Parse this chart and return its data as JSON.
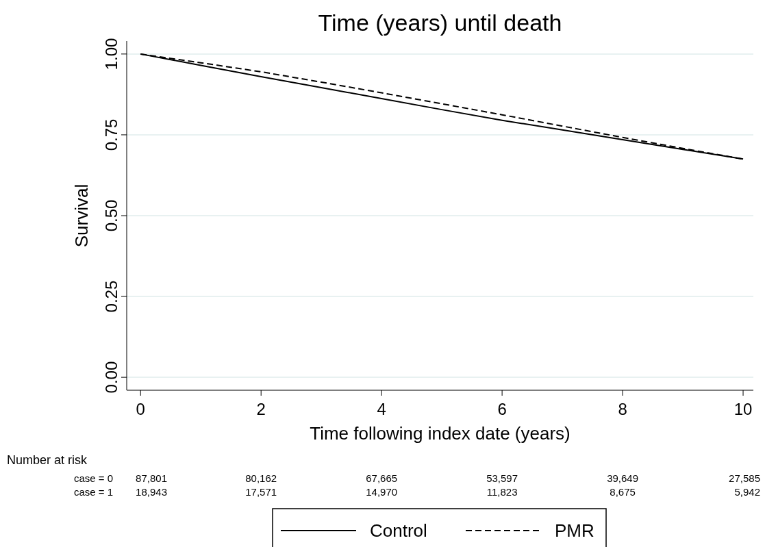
{
  "chart_data": {
    "type": "line",
    "title": "Time (years) until death",
    "xlabel": "Time following index date (years)",
    "ylabel": "Survival",
    "x": [
      0,
      1,
      2,
      3,
      4,
      5,
      6,
      7,
      8,
      9,
      10
    ],
    "series": [
      {
        "name": "Control",
        "color": "#000000",
        "line_style": "solid",
        "values": [
          1,
          0.965,
          0.93,
          0.896,
          0.862,
          0.828,
          0.795,
          0.765,
          0.735,
          0.705,
          0.675
        ]
      },
      {
        "name": "PMR",
        "color": "#000000",
        "line_style": "dashed",
        "values": [
          1,
          0.973,
          0.945,
          0.913,
          0.88,
          0.846,
          0.812,
          0.777,
          0.742,
          0.708,
          0.675
        ]
      }
    ],
    "xlim": [
      -0.23,
      10.17
    ],
    "xticks": [
      0,
      2,
      4,
      6,
      8,
      10
    ],
    "ylim": [
      -0.04,
      1.04
    ],
    "yticks": [
      {
        "value": 0,
        "label": "0.00"
      },
      {
        "value": 0.25,
        "label": "0.25"
      },
      {
        "value": 0.5,
        "label": "0.50"
      },
      {
        "value": 0.75,
        "label": "0.75"
      },
      {
        "value": 1,
        "label": "1.00"
      }
    ],
    "grid": "y",
    "legend": "bottom",
    "marker": "none",
    "annotations": [
      "Number at risk",
      "case = 0",
      "87,801",
      "80,162",
      "67,665",
      "53,597",
      "39,649",
      "27,585",
      "case = 1",
      "18,943",
      "17,571",
      "14,970",
      "11,823",
      "8,675",
      "5,942"
    ]
  }
}
